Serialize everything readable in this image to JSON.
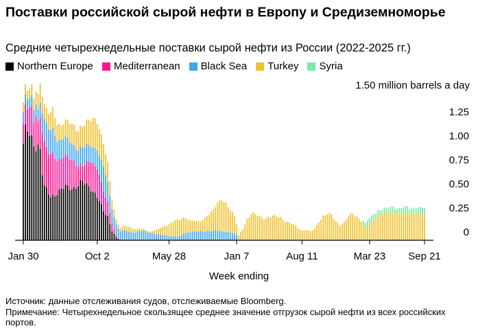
{
  "header": {
    "title": "Поставки российской сырой нефти в Европу и Средиземноморье",
    "subtitle": "Средние четырехнедельные поставки сырой нефти из России (2022-2025 гг.)"
  },
  "legend": {
    "items": [
      {
        "label": "Northern Europe",
        "color": "#000000"
      },
      {
        "label": "Mediterranean",
        "color": "#ff1493"
      },
      {
        "label": "Black Sea",
        "color": "#3ea6ee"
      },
      {
        "label": "Turkey",
        "color": "#f2c12e"
      },
      {
        "label": "Syria",
        "color": "#7be8a4"
      }
    ]
  },
  "footer": {
    "source": "Источник: данные отслеживания судов, отслеживаемые Bloomberg.",
    "note": "Примечание: Четырехнедельное скользящее среднее значение отгрузок сырой нефти из всех российских портов."
  },
  "chart_data": {
    "type": "bar",
    "stacked": true,
    "title": "Средние четырехнедельные поставки сырой нефти из России (2022-2025 гг.)",
    "xlabel": "Week ending",
    "ylabel": "million barrels a day",
    "unit_label": "1.50 million barrels a day",
    "ylim": [
      0,
      1.6
    ],
    "y_ticks": [
      0,
      0.25,
      0.5,
      0.75,
      1.0,
      1.25,
      1.5
    ],
    "y_tick_labels": [
      "0",
      "0.25",
      "0.50",
      "0.75",
      "1.00",
      "1.25",
      ""
    ],
    "x_ticks": [
      {
        "label": "Jan 30",
        "week_index": 0
      },
      {
        "label": "Oct 2",
        "week_index": 35
      },
      {
        "label": "May 28",
        "week_index": 69
      },
      {
        "label": "Jan 7",
        "week_index": 101
      },
      {
        "label": "Aug 11",
        "week_index": 132
      },
      {
        "label": "Mar 23",
        "week_index": 164
      },
      {
        "label": "Sep 21",
        "week_index": 190
      }
    ],
    "num_weeks": 191,
    "series_names": [
      "Northern Europe",
      "Mediterranean",
      "Black Sea",
      "Turkey",
      "Syria"
    ],
    "colors": [
      "#000000",
      "#ff1493",
      "#3ea6ee",
      "#f2c12e",
      "#7be8a4"
    ],
    "key_points": {
      "Northern Europe": [
        [
          0,
          1.0
        ],
        [
          1,
          1.13
        ],
        [
          2,
          1.12
        ],
        [
          3,
          1.08
        ],
        [
          5,
          1.0
        ],
        [
          7,
          1.0
        ],
        [
          8,
          0.95
        ],
        [
          9,
          0.7
        ],
        [
          10,
          0.55
        ],
        [
          13,
          0.45
        ],
        [
          16,
          0.5
        ],
        [
          20,
          0.55
        ],
        [
          24,
          0.55
        ],
        [
          28,
          0.6
        ],
        [
          32,
          0.55
        ],
        [
          35,
          0.45
        ],
        [
          38,
          0.3
        ],
        [
          40,
          0.25
        ],
        [
          42,
          0.1
        ],
        [
          44,
          0.03
        ],
        [
          46,
          0
        ]
      ],
      "Mediterranean": [
        [
          0,
          0.22
        ],
        [
          2,
          0.23
        ],
        [
          3,
          0.28
        ],
        [
          4,
          0.3
        ],
        [
          5,
          0.25
        ],
        [
          6,
          0.35
        ],
        [
          7,
          0.25
        ],
        [
          8,
          0.35
        ],
        [
          9,
          0.45
        ],
        [
          10,
          0.45
        ],
        [
          12,
          0.4
        ],
        [
          14,
          0.45
        ],
        [
          16,
          0.35
        ],
        [
          20,
          0.3
        ],
        [
          24,
          0.3
        ],
        [
          26,
          0.2
        ],
        [
          28,
          0.15
        ],
        [
          32,
          0.3
        ],
        [
          35,
          0.3
        ],
        [
          38,
          0.2
        ],
        [
          40,
          0.15
        ],
        [
          42,
          0.08
        ],
        [
          44,
          0.02
        ],
        [
          45,
          0
        ]
      ],
      "Black Sea": [
        [
          0,
          0.12
        ],
        [
          2,
          0.1
        ],
        [
          3,
          0.1
        ],
        [
          5,
          0.12
        ],
        [
          7,
          0.12
        ],
        [
          8,
          0.15
        ],
        [
          9,
          0.2
        ],
        [
          10,
          0.25
        ],
        [
          12,
          0.25
        ],
        [
          14,
          0.25
        ],
        [
          16,
          0.2
        ],
        [
          20,
          0.2
        ],
        [
          24,
          0.15
        ],
        [
          28,
          0.2
        ],
        [
          32,
          0.15
        ],
        [
          35,
          0.2
        ],
        [
          38,
          0.25
        ],
        [
          40,
          0.2
        ],
        [
          42,
          0.15
        ],
        [
          44,
          0.12
        ],
        [
          46,
          0.1
        ],
        [
          48,
          0.1
        ],
        [
          52,
          0.08
        ],
        [
          56,
          0.1
        ],
        [
          60,
          0.08
        ],
        [
          64,
          0.06
        ],
        [
          68,
          0.05
        ],
        [
          70,
          0.04
        ],
        [
          74,
          0.04
        ],
        [
          76,
          0.07
        ],
        [
          80,
          0.09
        ],
        [
          84,
          0.09
        ],
        [
          88,
          0.1
        ],
        [
          92,
          0.1
        ],
        [
          96,
          0.09
        ],
        [
          99,
          0.08
        ],
        [
          101,
          0.05
        ],
        [
          102,
          0
        ]
      ],
      "Turkey": [
        [
          0,
          0.1
        ],
        [
          3,
          0.1
        ],
        [
          5,
          0.12
        ],
        [
          7,
          0.15
        ],
        [
          8,
          0.2
        ],
        [
          10,
          0.15
        ],
        [
          14,
          0.2
        ],
        [
          18,
          0.15
        ],
        [
          22,
          0.2
        ],
        [
          26,
          0.2
        ],
        [
          30,
          0.25
        ],
        [
          34,
          0.3
        ],
        [
          38,
          0.25
        ],
        [
          40,
          0.2
        ],
        [
          42,
          0.1
        ],
        [
          44,
          0.05
        ],
        [
          46,
          0.03
        ],
        [
          48,
          0.05
        ],
        [
          52,
          0.04
        ],
        [
          56,
          0.02
        ],
        [
          60,
          0.01
        ],
        [
          64,
          0.06
        ],
        [
          68,
          0.1
        ],
        [
          72,
          0.18
        ],
        [
          76,
          0.16
        ],
        [
          80,
          0.12
        ],
        [
          84,
          0.1
        ],
        [
          88,
          0.18
        ],
        [
          90,
          0.22
        ],
        [
          92,
          0.28
        ],
        [
          94,
          0.32
        ],
        [
          96,
          0.3
        ],
        [
          98,
          0.24
        ],
        [
          100,
          0.18
        ],
        [
          102,
          0.05
        ],
        [
          104,
          0.12
        ],
        [
          106,
          0.22
        ],
        [
          108,
          0.28
        ],
        [
          110,
          0.26
        ],
        [
          114,
          0.23
        ],
        [
          118,
          0.25
        ],
        [
          122,
          0.24
        ],
        [
          124,
          0.2
        ],
        [
          128,
          0.16
        ],
        [
          130,
          0.13
        ],
        [
          132,
          0.1
        ],
        [
          134,
          0.11
        ],
        [
          136,
          0.09
        ],
        [
          138,
          0.12
        ],
        [
          140,
          0.2
        ],
        [
          142,
          0.25
        ],
        [
          144,
          0.27
        ],
        [
          146,
          0.26
        ],
        [
          148,
          0.2
        ],
        [
          150,
          0.16
        ],
        [
          152,
          0.18
        ],
        [
          154,
          0.25
        ],
        [
          156,
          0.28
        ],
        [
          158,
          0.25
        ],
        [
          160,
          0.2
        ],
        [
          162,
          0.13
        ],
        [
          164,
          0.16
        ],
        [
          166,
          0.22
        ],
        [
          168,
          0.26
        ],
        [
          170,
          0.27
        ],
        [
          172,
          0.28
        ],
        [
          174,
          0.3
        ],
        [
          176,
          0.29
        ],
        [
          178,
          0.27
        ],
        [
          180,
          0.27
        ],
        [
          182,
          0.29
        ],
        [
          184,
          0.28
        ],
        [
          186,
          0.27
        ],
        [
          188,
          0.27
        ],
        [
          190,
          0.26
        ]
      ],
      "Syria": [
        [
          0,
          0
        ],
        [
          160,
          0
        ],
        [
          161,
          0.03
        ],
        [
          163,
          0.06
        ],
        [
          164,
          0.07
        ],
        [
          166,
          0.06
        ],
        [
          168,
          0.05
        ],
        [
          170,
          0.04
        ],
        [
          172,
          0.05
        ],
        [
          174,
          0.06
        ],
        [
          176,
          0.06
        ],
        [
          178,
          0.05
        ],
        [
          180,
          0.07
        ],
        [
          182,
          0.06
        ],
        [
          184,
          0.06
        ],
        [
          186,
          0.07
        ],
        [
          188,
          0.06
        ],
        [
          190,
          0.08
        ]
      ]
    }
  }
}
